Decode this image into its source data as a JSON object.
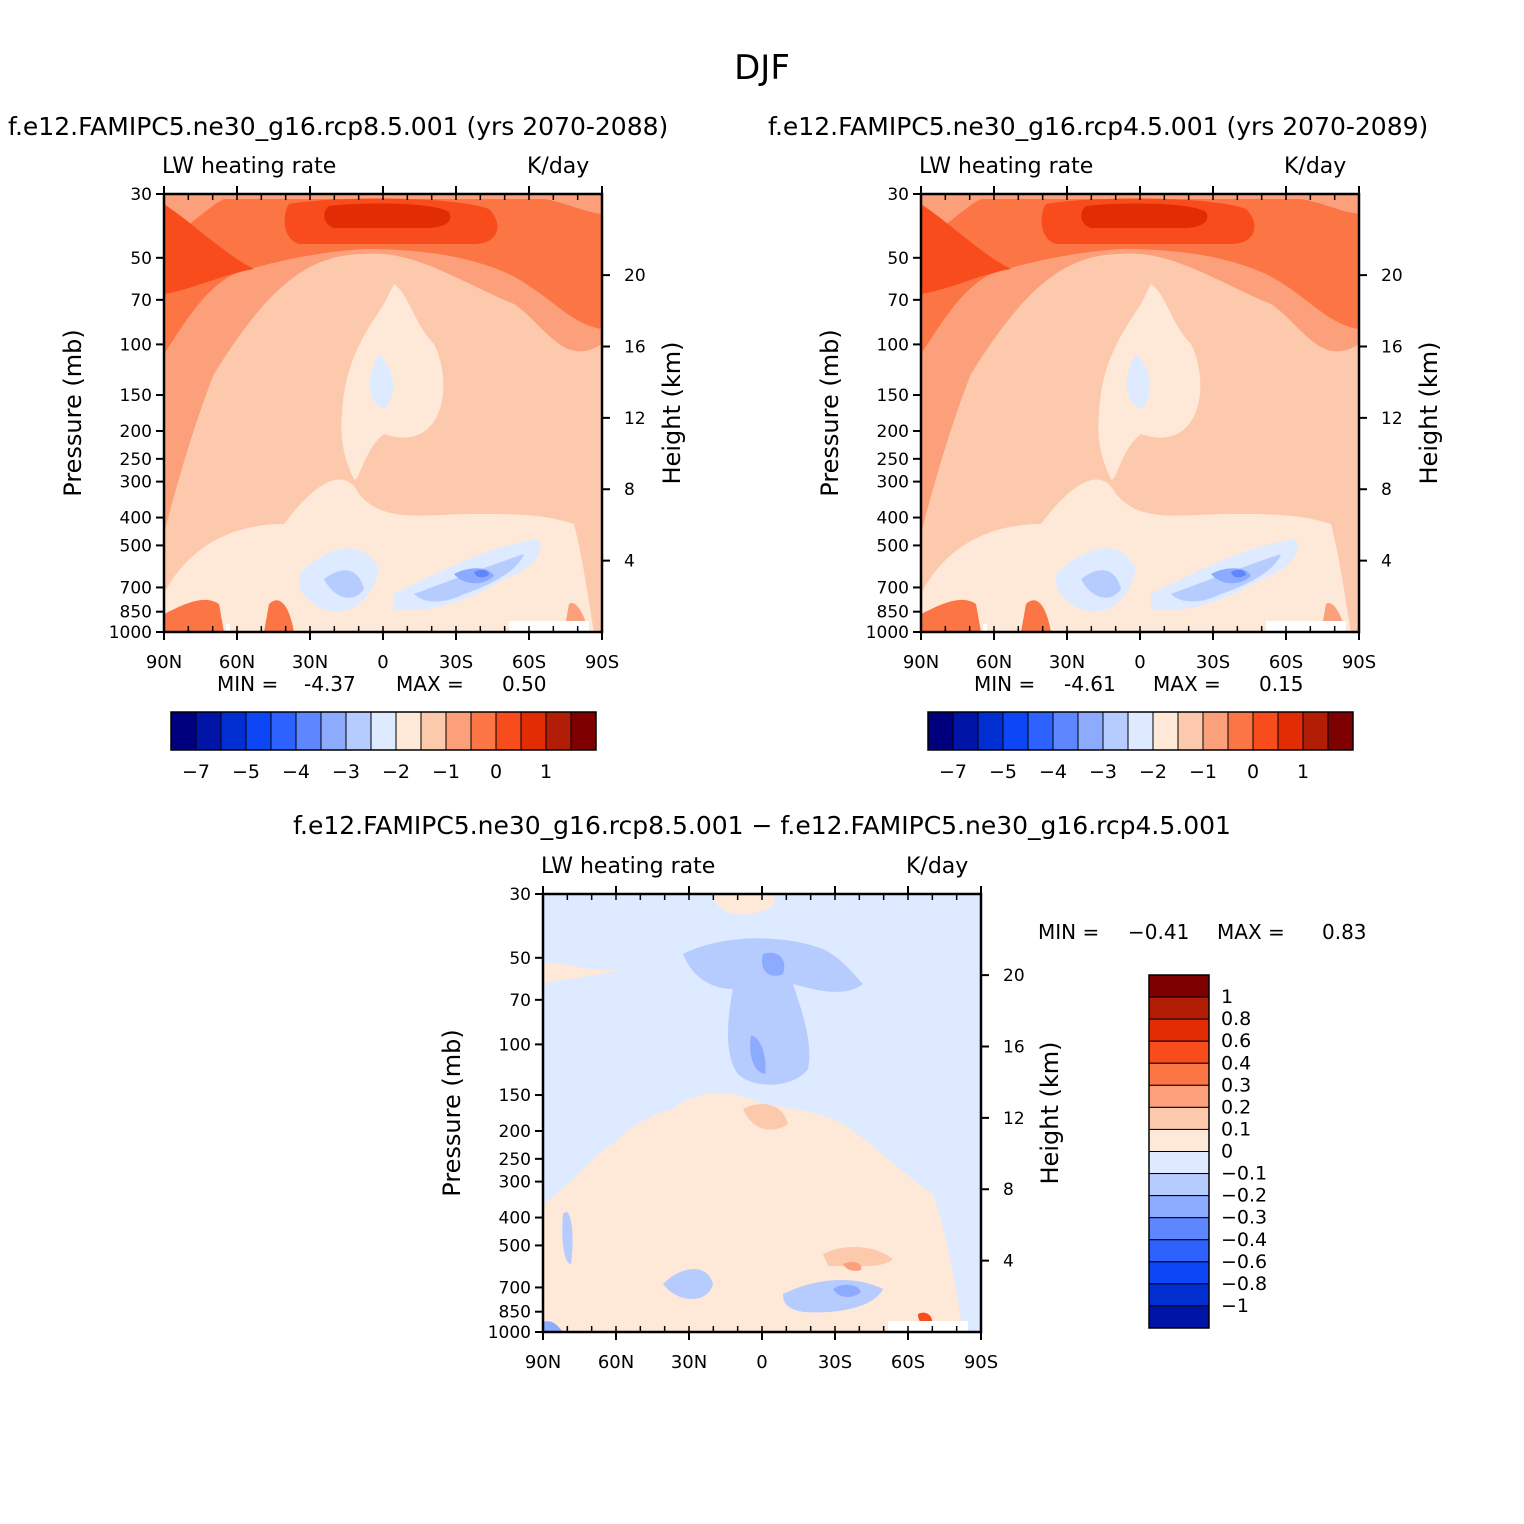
{
  "figure_title": "DJF",
  "chart_data": [
    {
      "type": "heatmap",
      "title": "f.e12.FAMIPC5.ne30_g16.rcp8.5.001 (yrs 2070-2088)",
      "variable": "LW heating rate",
      "units": "K/day",
      "ylabel": "Pressure (mb)",
      "ylabel_right": "Height (km)",
      "x_ticks": [
        "90N",
        "60N",
        "30N",
        "0",
        "30S",
        "60S",
        "90S"
      ],
      "y_ticks": [
        30,
        50,
        70,
        100,
        150,
        200,
        250,
        300,
        400,
        500,
        700,
        850,
        1000
      ],
      "y_ticks_right": [
        20,
        16,
        12,
        8,
        4
      ],
      "y_scale": "log-pressure",
      "min_label": "MIN =",
      "min_value": "-4.37",
      "max_label": "MAX =",
      "max_value": "0.50",
      "colorbar_labels": [
        "−7",
        "−5",
        "−4",
        "−3",
        "−2",
        "−1",
        "0",
        "1"
      ],
      "colors": [
        "#00007f",
        "#0015a8",
        "#002ed1",
        "#0d47f5",
        "#2e62ff",
        "#5e86ff",
        "#8cabff",
        "#b6ccff",
        "#ddeaff",
        "#fee9d9",
        "#fdc9ac",
        "#fca07c",
        "#fc7545",
        "#f94c1c",
        "#e12c04",
        "#b11e05",
        "#7f0000"
      ]
    },
    {
      "type": "heatmap",
      "title": "f.e12.FAMIPC5.ne30_g16.rcp4.5.001 (yrs 2070-2089)",
      "variable": "LW heating rate",
      "units": "K/day",
      "ylabel": "Pressure (mb)",
      "ylabel_right": "Height (km)",
      "x_ticks": [
        "90N",
        "60N",
        "30N",
        "0",
        "30S",
        "60S",
        "90S"
      ],
      "y_ticks": [
        30,
        50,
        70,
        100,
        150,
        200,
        250,
        300,
        400,
        500,
        700,
        850,
        1000
      ],
      "y_ticks_right": [
        20,
        16,
        12,
        8,
        4
      ],
      "y_scale": "log-pressure",
      "min_label": "MIN =",
      "min_value": "-4.61",
      "max_label": "MAX =",
      "max_value": "0.15",
      "colorbar_labels": [
        "−7",
        "−5",
        "−4",
        "−3",
        "−2",
        "−1",
        "0",
        "1"
      ]
    },
    {
      "type": "heatmap",
      "title": "f.e12.FAMIPC5.ne30_g16.rcp8.5.001 − f.e12.FAMIPC5.ne30_g16.rcp4.5.001",
      "variable": "LW heating rate",
      "units": "K/day",
      "ylabel": "Pressure (mb)",
      "ylabel_right": "Height (km)",
      "x_ticks": [
        "90N",
        "60N",
        "30N",
        "0",
        "30S",
        "60S",
        "90S"
      ],
      "y_ticks": [
        30,
        50,
        70,
        100,
        150,
        200,
        250,
        300,
        400,
        500,
        700,
        850,
        1000
      ],
      "y_ticks_right": [
        20,
        16,
        12,
        8,
        4
      ],
      "y_scale": "log-pressure",
      "min_label": "MIN =",
      "min_value": "−0.41",
      "max_label": "MAX =",
      "max_value": "0.83",
      "colorbar_labels": [
        "1",
        "0.8",
        "0.6",
        "0.4",
        "0.3",
        "0.2",
        "0.1",
        "0",
        "−0.1",
        "−0.2",
        "−0.3",
        "−0.4",
        "−0.6",
        "−0.8",
        "−1"
      ]
    }
  ]
}
